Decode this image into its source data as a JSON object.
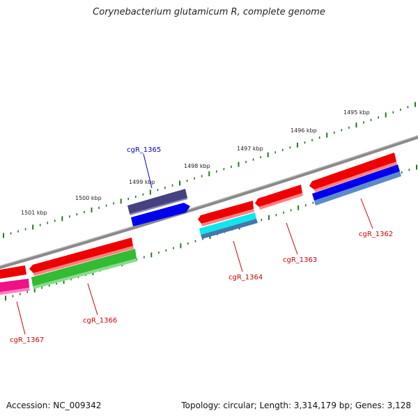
{
  "title": "Corynebacterium glutamicum R, complete genome",
  "footer": {
    "accession": "Accession: NC_009342",
    "summary": "Topology: circular; Length: 3,314,179 bp; Genes: 3,128"
  },
  "colors": {
    "backbone": "#8a8a8a",
    "tick": "#1f7a1f",
    "label_red": "#cc0000",
    "label_blue": "#0000cc"
  },
  "kbp_labels": [
    "1495 kbp",
    "1496 kbp",
    "1497 kbp",
    "1498 kbp",
    "1499 kbp",
    "1500 kbp",
    "1501 kbp"
  ],
  "gene_labels": [
    {
      "id": "cgR_1362",
      "color": "red"
    },
    {
      "id": "cgR_1363",
      "color": "red"
    },
    {
      "id": "cgR_1364",
      "color": "red"
    },
    {
      "id": "cgR_1365",
      "color": "blue"
    },
    {
      "id": "cgR_1366",
      "color": "red"
    },
    {
      "id": "cgR_1367",
      "color": "red"
    }
  ]
}
